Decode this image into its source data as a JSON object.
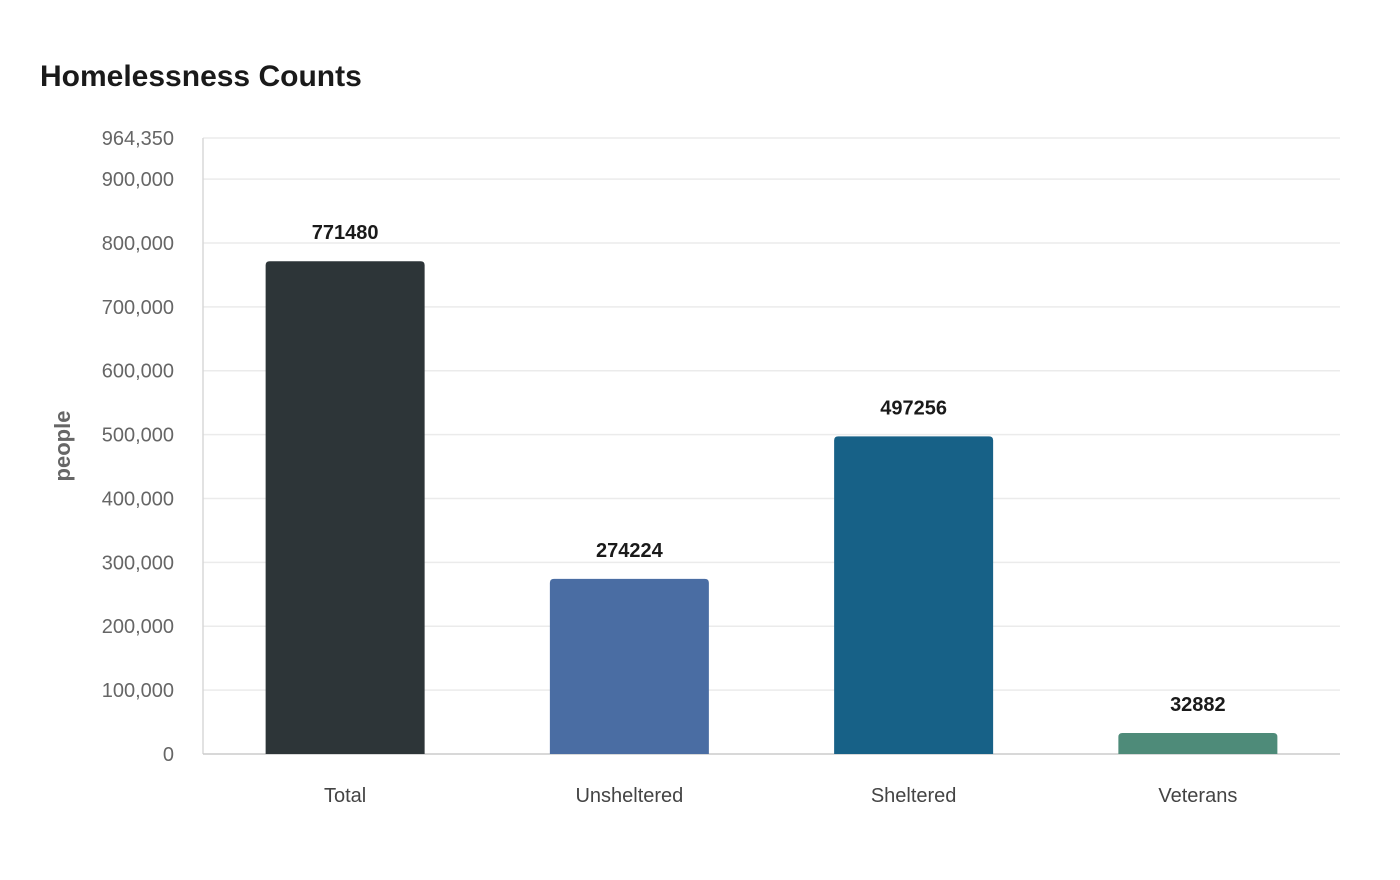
{
  "chart_data": {
    "type": "bar",
    "title": "Homelessness Counts",
    "xlabel": "",
    "ylabel": "people",
    "categories": [
      "Total",
      "Unsheltered",
      "Sheltered",
      "Veterans"
    ],
    "values": [
      771480,
      274224,
      497256,
      32882
    ],
    "data_labels": [
      "771480",
      "274224",
      "497256",
      "32882"
    ],
    "ylim": [
      0,
      964350
    ],
    "yticks": [
      0,
      100000,
      200000,
      300000,
      400000,
      500000,
      600000,
      700000,
      800000,
      900000,
      964350
    ],
    "ytick_labels": [
      "0",
      "100,000",
      "200,000",
      "300,000",
      "400,000",
      "500,000",
      "600,000",
      "700,000",
      "800,000",
      "900,000",
      "964,350"
    ],
    "colors": [
      "#2d3538",
      "#4a6da3",
      "#176187",
      "#4e8b79"
    ],
    "grid": true,
    "legend": "none"
  }
}
